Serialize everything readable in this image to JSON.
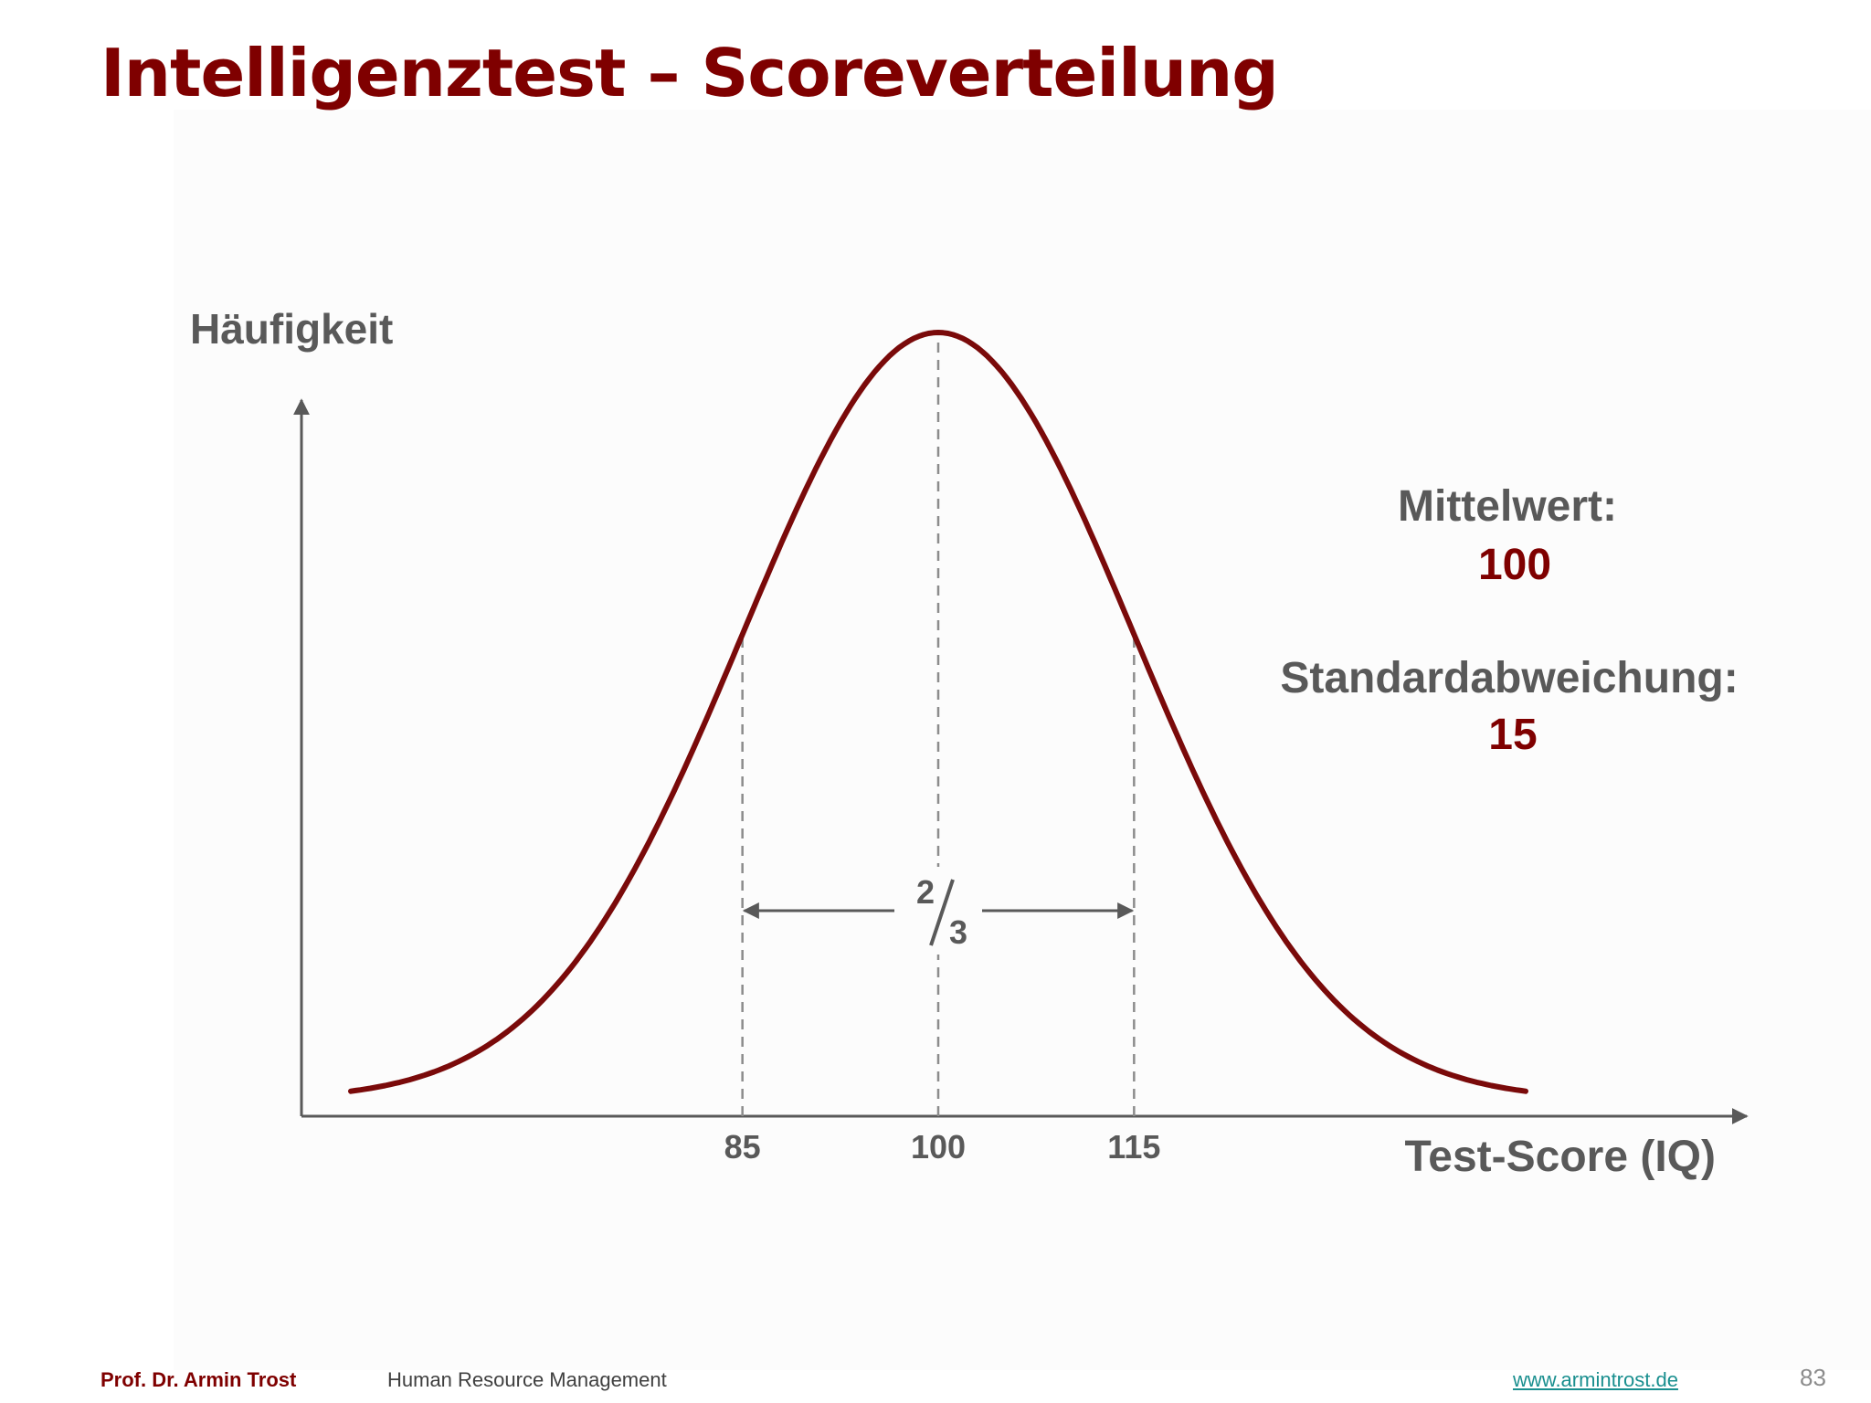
{
  "slide": {
    "title": "Intelligenztest – Scoreverteilung"
  },
  "chart_data": {
    "type": "line",
    "ylabel": "Häufigkeit",
    "xlabel": "Test-Score (IQ)",
    "x_ticks": [
      85,
      100,
      115
    ],
    "x_tick_labels": [
      "85",
      "100",
      "115"
    ],
    "xlim": [
      55,
      145
    ],
    "mean": 100,
    "sd": 15,
    "curve": "normal distribution density",
    "range_annotation": {
      "label_num": "2",
      "label_den": "3",
      "from": 85,
      "to": 115
    },
    "stats": {
      "mean_label": "Mittelwert:",
      "mean_value": "100",
      "sd_label": "Standardabweichung:",
      "sd_value": "15"
    },
    "colors": {
      "curve": "#7a0a0a",
      "axis": "#595959",
      "title": "#7f0000",
      "value": "#7f0000",
      "text": "#595959"
    },
    "grid": false
  },
  "footer": {
    "author": "Prof. Dr. Armin Trost",
    "course": "Human Resource Management",
    "website": "www.armintrost.de",
    "page_number": "83"
  }
}
